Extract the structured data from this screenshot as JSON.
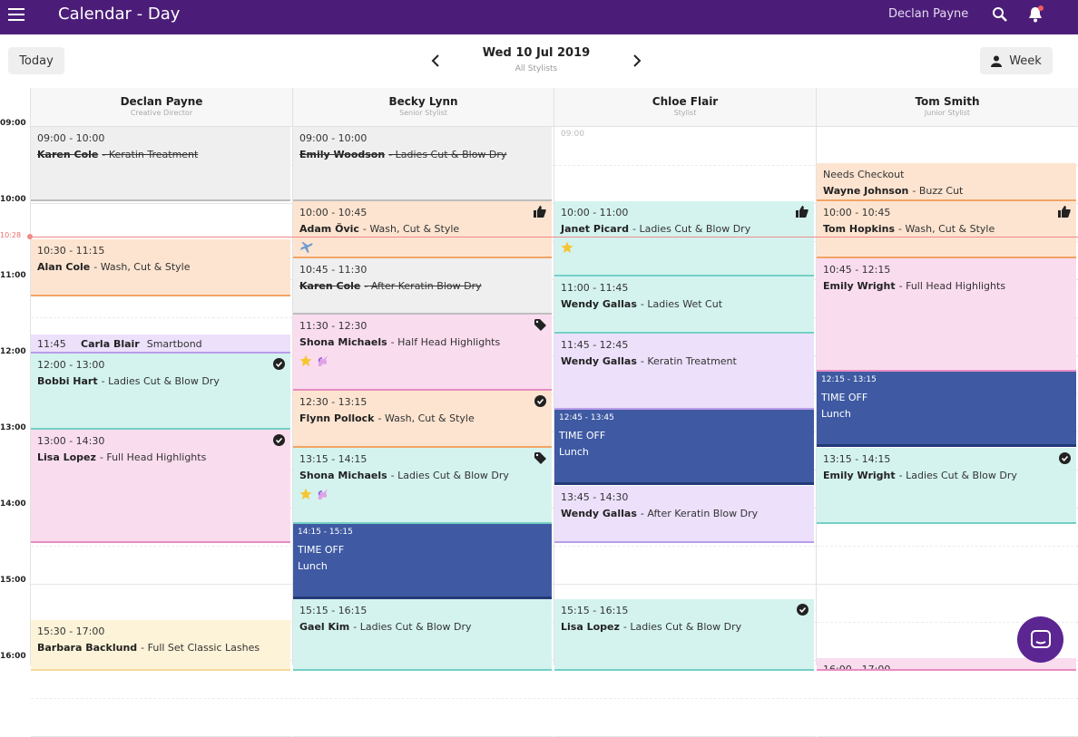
{
  "header": {
    "title": "Calendar - Day",
    "user": "Declan Payne"
  },
  "toolbar": {
    "today": "Today",
    "date": "Wed 10 Jul 2019",
    "subtitle": "All Stylists",
    "view": "Week"
  },
  "time_labels": [
    "09:00",
    "10:00",
    "11:00",
    "12:00",
    "13:00",
    "14:00",
    "15:00",
    "16:00"
  ],
  "current_time": "10:28",
  "columns": [
    {
      "name": "Declan Payne",
      "role": "Creative Director",
      "events": [
        {
          "time": "09:00 - 10:00",
          "client": "Karen Cole",
          "service": "- Keratin Treatment"
        },
        {
          "time": "10:30 - 11:15",
          "client": "Alan Cole",
          "service": "- Wash, Cut & Style"
        },
        {
          "time": "11:45",
          "client": "Carla Blair",
          "service": "Smartbond"
        },
        {
          "time": "12:00 - 13:00",
          "client": "Bobbi Hart",
          "service": "- Ladies Cut & Blow Dry"
        },
        {
          "time": "13:00 - 14:30",
          "client": "Lisa Lopez",
          "service": "- Full Head Highlights"
        },
        {
          "time": "15:30 - 17:00",
          "client": "Barbara Backlund",
          "service": "- Full Set Classic Lashes"
        }
      ]
    },
    {
      "name": "Becky Lynn",
      "role": "Senior Stylist",
      "events": [
        {
          "time": "09:00 - 10:00",
          "client": "Emily Woodson",
          "service": "- Ladies Cut & Blow Dry"
        },
        {
          "time": "10:00 - 10:45",
          "client": "Adam Övic",
          "service": "- Wash, Cut & Style"
        },
        {
          "time": "10:45 - 11:30",
          "client": "Karen Cole",
          "service": "- After Keratin Blow Dry"
        },
        {
          "time": "11:30 - 12:30",
          "client": "Shona Michaels",
          "service": "- Half Head Highlights"
        },
        {
          "time": "12:30 - 13:15",
          "client": "Flynn Pollock",
          "service": "- Wash, Cut & Style"
        },
        {
          "time": "13:15 - 14:15",
          "client": "Shona Michaels",
          "service": "- Ladies Cut & Blow Dry"
        },
        {
          "time": "14:15 - 15:15",
          "title": "TIME OFF",
          "note": "Lunch"
        },
        {
          "time": "15:15 - 16:15",
          "client": "Gael Kim",
          "service": "- Ladies Cut & Blow Dry"
        }
      ]
    },
    {
      "name": "Chloe Flair",
      "role": "Stylist",
      "placeholder": "09:00",
      "events": [
        {
          "time": "10:00 - 11:00",
          "client": "Janet Picard",
          "service": "- Ladies Cut & Blow Dry"
        },
        {
          "time": "11:00 - 11:45",
          "client": "Wendy Gallas",
          "service": "- Ladies Wet Cut"
        },
        {
          "time": "11:45 - 12:45",
          "client": "Wendy Gallas",
          "service": "- Keratin Treatment"
        },
        {
          "time": "12:45 - 13:45",
          "title": "TIME OFF",
          "note": "Lunch"
        },
        {
          "time": "13:45 - 14:30",
          "client": "Wendy Gallas",
          "service": "- After Keratin Blow Dry"
        },
        {
          "time": "15:15 - 16:15",
          "client": "Lisa Lopez",
          "service": "- Ladies Cut & Blow Dry"
        }
      ]
    },
    {
      "name": "Tom Smith",
      "role": "Junior Stylist",
      "events": [
        {
          "status": "Needs Checkout",
          "client": "Wayne Johnson",
          "service": "- Buzz Cut"
        },
        {
          "time": "10:00 - 10:45",
          "client": "Tom Hopkins",
          "service": "- Wash, Cut & Style"
        },
        {
          "time": "10:45 - 12:15",
          "client": "Emily Wright",
          "service": "- Full Head Highlights"
        },
        {
          "time": "12:15 - 13:15",
          "title": "TIME OFF",
          "note": "Lunch"
        },
        {
          "time": "13:15 - 14:15",
          "client": "Emily Wright",
          "service": "- Ladies Cut & Blow Dry"
        },
        {
          "time": "16:00 - 17:00"
        }
      ]
    }
  ]
}
